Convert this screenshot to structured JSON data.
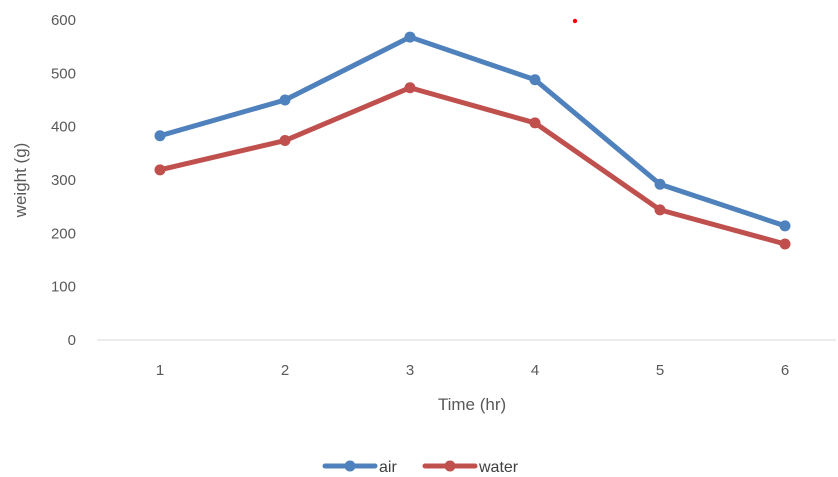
{
  "chart_data": {
    "type": "line",
    "title": "",
    "xlabel": "Time (hr)",
    "ylabel": "weight (g)",
    "categories": [
      "1",
      "2",
      "3",
      "4",
      "5",
      "6"
    ],
    "ylim": [
      0,
      600
    ],
    "yticks": [
      0,
      100,
      200,
      300,
      400,
      500,
      600
    ],
    "grid": false,
    "legend": "bottom",
    "series": [
      {
        "name": "air",
        "color": "#4F81BD",
        "values": [
          383,
          450,
          568,
          488,
          292,
          214
        ]
      },
      {
        "name": "water",
        "color": "#C0504D",
        "values": [
          319,
          374,
          473,
          407,
          244,
          180
        ]
      }
    ]
  }
}
